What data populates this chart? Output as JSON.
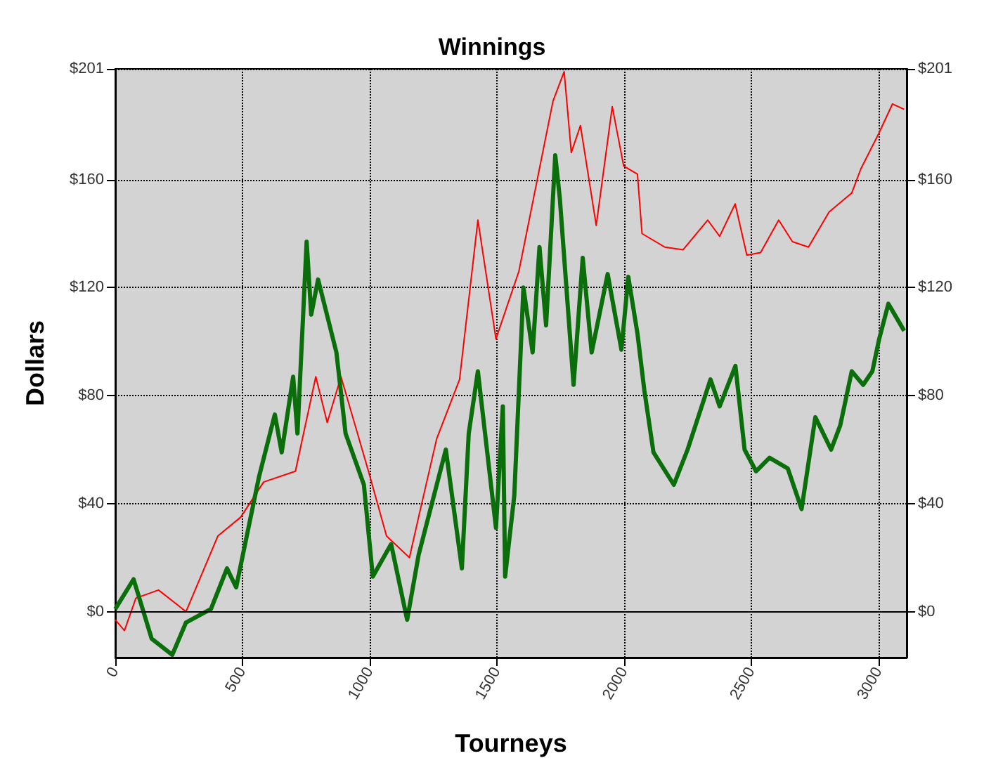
{
  "chart_data": {
    "type": "line",
    "title": "Winnings",
    "xlabel": "Tourneys",
    "ylabel": "Dollars",
    "xlim": [
      0,
      3110
    ],
    "xticks": [
      0,
      500,
      1000,
      1500,
      2000,
      2500,
      3000
    ],
    "ylim": [
      -17,
      201
    ],
    "yticks": [
      {
        "value": 0,
        "label": "$0"
      },
      {
        "value": 40,
        "label": "$40"
      },
      {
        "value": 80,
        "label": "$80"
      },
      {
        "value": 120,
        "label": "$120"
      },
      {
        "value": 160,
        "label": "$160"
      },
      {
        "value": 201,
        "label": "$201"
      }
    ],
    "y2lim": [
      -17,
      201
    ],
    "y2ticks": [
      {
        "value": 0,
        "label": "$0"
      },
      {
        "value": 40,
        "label": "$40"
      },
      {
        "value": 80,
        "label": "$80"
      },
      {
        "value": 120,
        "label": "$120"
      },
      {
        "value": 160,
        "label": "$160"
      },
      {
        "value": 201,
        "label": "$201"
      }
    ],
    "grid": true,
    "marker": "none",
    "line_style": "solid",
    "ref_lines": [
      {
        "axis": "y",
        "value": 0,
        "color": "#000000",
        "line_style": "solid"
      }
    ],
    "series": [
      {
        "color": "#ff0000",
        "x": [
          0,
          36,
          81,
          170,
          278,
          403,
          493,
          583,
          708,
          788,
          833,
          887,
          995,
          1066,
          1156,
          1192,
          1263,
          1353,
          1425,
          1496,
          1586,
          1720,
          1764,
          1792,
          1828,
          1890,
          1953,
          1998,
          2052,
          2070,
          2159,
          2231,
          2328,
          2375,
          2436,
          2482,
          2536,
          2607,
          2661,
          2724,
          2805,
          2894,
          2930,
          3000,
          3054,
          3100
        ],
        "values": [
          -3,
          -7,
          5,
          8,
          0,
          28,
          35,
          48,
          52,
          87,
          70,
          87,
          52,
          28,
          20,
          35,
          64,
          86,
          145,
          101,
          126,
          189,
          200,
          170,
          180,
          143,
          187,
          165,
          162,
          140,
          135,
          134,
          145,
          139,
          151,
          132,
          133,
          145,
          137,
          135,
          148,
          155,
          164,
          177,
          188,
          186
        ]
      },
      {
        "color": "#0a6e0a",
        "x": [
          0,
          72,
          143,
          224,
          278,
          376,
          439,
          475,
          565,
          627,
          654,
          699,
          716,
          752,
          770,
          797,
          869,
          905,
          977,
          1012,
          1084,
          1147,
          1192,
          1299,
          1362,
          1389,
          1425,
          1496,
          1523,
          1532,
          1568,
          1604,
          1640,
          1667,
          1693,
          1729,
          1747,
          1801,
          1837,
          1872,
          1935,
          1989,
          2016,
          2052,
          2079,
          2115,
          2195,
          2249,
          2339,
          2375,
          2437,
          2473,
          2518,
          2571,
          2643,
          2697,
          2751,
          2813,
          2849,
          2894,
          2939,
          2975,
          3002,
          3038,
          3100
        ],
        "values": [
          1,
          12,
          -10,
          -16,
          -4,
          1,
          16,
          9,
          50,
          73,
          59,
          87,
          66,
          137,
          110,
          123,
          96,
          66,
          47,
          13,
          25,
          -3,
          21,
          60,
          16,
          66,
          89,
          31,
          76,
          13,
          43,
          120,
          96,
          135,
          106,
          169,
          153,
          84,
          131,
          96,
          125,
          97,
          124,
          103,
          82,
          59,
          47,
          60,
          86,
          76,
          91,
          60,
          52,
          57,
          53,
          38,
          72,
          60,
          69,
          89,
          84,
          89,
          101,
          114,
          104
        ]
      }
    ]
  }
}
